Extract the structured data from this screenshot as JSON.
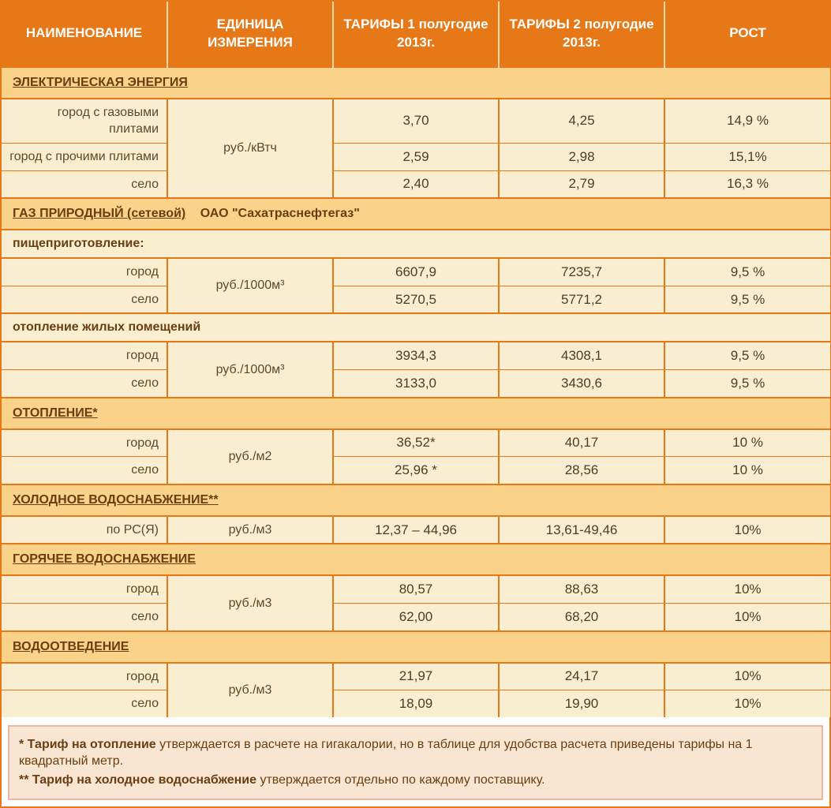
{
  "header": {
    "col1": "НАИМЕНОВАНИЕ",
    "col2": "ЕДИНИЦА ИЗМЕРЕНИЯ",
    "col3": "ТАРИФЫ 1 полугодие 2013г.",
    "col4": "ТАРИФЫ 2 полугодие 2013г.",
    "col5": "РОСТ"
  },
  "sections": {
    "elec": {
      "title": "ЭЛЕКТРИЧЕСКАЯ ЭНЕРГИЯ",
      "unit": "руб./кВтч",
      "rows": [
        {
          "name": "город с газовыми плитами",
          "t1": "3,70",
          "t2": "4,25",
          "g": "14,9 %"
        },
        {
          "name": "город с прочими плитами",
          "t1": "2,59",
          "t2": "2,98",
          "g": "15,1%"
        },
        {
          "name": "село",
          "t1": "2,40",
          "t2": "2,79",
          "g": "16,3 %"
        }
      ]
    },
    "gas": {
      "title": "ГАЗ ПРИРОДНЫЙ (сетевой)",
      "title_extra": "ОАО \"Сахатраснефтегаз\"",
      "sub1": "пищеприготовление:",
      "unit1": "руб./1000м³",
      "rows1": [
        {
          "name": "город",
          "t1": "6607,9",
          "t2": "7235,7",
          "g": "9,5 %"
        },
        {
          "name": "село",
          "t1": "5270,5",
          "t2": "5771,2",
          "g": "9,5 %"
        }
      ],
      "sub2": "отопление жилых помещений",
      "unit2": "руб./1000м³",
      "rows2": [
        {
          "name": "город",
          "t1": "3934,3",
          "t2": "4308,1",
          "g": "9,5 %"
        },
        {
          "name": "село",
          "t1": "3133,0",
          "t2": "3430,6",
          "g": "9,5 %"
        }
      ]
    },
    "heat": {
      "title": "ОТОПЛЕНИЕ*",
      "unit": "руб./м2",
      "rows": [
        {
          "name": "город",
          "t1": "36,52*",
          "t2": "40,17",
          "g": "10 %"
        },
        {
          "name": "село",
          "t1": "25,96 *",
          "t2": "28,56",
          "g": "10 %"
        }
      ]
    },
    "cold": {
      "title": "ХОЛОДНОЕ ВОДОСНАБЖЕНИЕ**",
      "unit": "руб./м3",
      "rows": [
        {
          "name": "по РС(Я)",
          "t1": "12,37 – 44,96",
          "t2": "13,61-49,46",
          "g": "10%"
        }
      ]
    },
    "hot": {
      "title": "ГОРЯЧЕЕ ВОДОСНАБЖЕНИЕ",
      "unit": "руб./м3",
      "rows": [
        {
          "name": "город",
          "t1": "80,57",
          "t2": "88,63",
          "g": "10%"
        },
        {
          "name": "село",
          "t1": "62,00",
          "t2": "68,20",
          "g": "10%"
        }
      ]
    },
    "drain": {
      "title": "ВОДООТВЕДЕНИЕ",
      "unit": "руб./м3",
      "rows": [
        {
          "name": "город",
          "t1": "21,97",
          "t2": "24,17",
          "g": "10%"
        },
        {
          "name": "село",
          "t1": "18,09",
          "t2": "19,90",
          "g": "10%"
        }
      ]
    }
  },
  "footnote": {
    "line1_b": "* Тариф на отопление",
    "line1": " утверждается в расчете на гигакалории, но в таблице для удобства расчета приведены тарифы на 1 квадратный метр.",
    "line2_b": "** Тариф на холодное водоснабжение",
    "line2": " утверждается отдельно по каждому поставщику."
  },
  "style": {
    "colors": {
      "header_bg": "#e77817",
      "header_fg": "#ffffff",
      "section_bg": "#fbd28a",
      "cell_bg": "#f9efd0",
      "border": "#e77817",
      "text_dark": "#6a3e10",
      "footnote_bg": "#f8e6d3",
      "footnote_border": "#e9b6a0"
    },
    "font_family": "Verdana",
    "header_fontsize": 17,
    "cell_fontsize": 16
  }
}
